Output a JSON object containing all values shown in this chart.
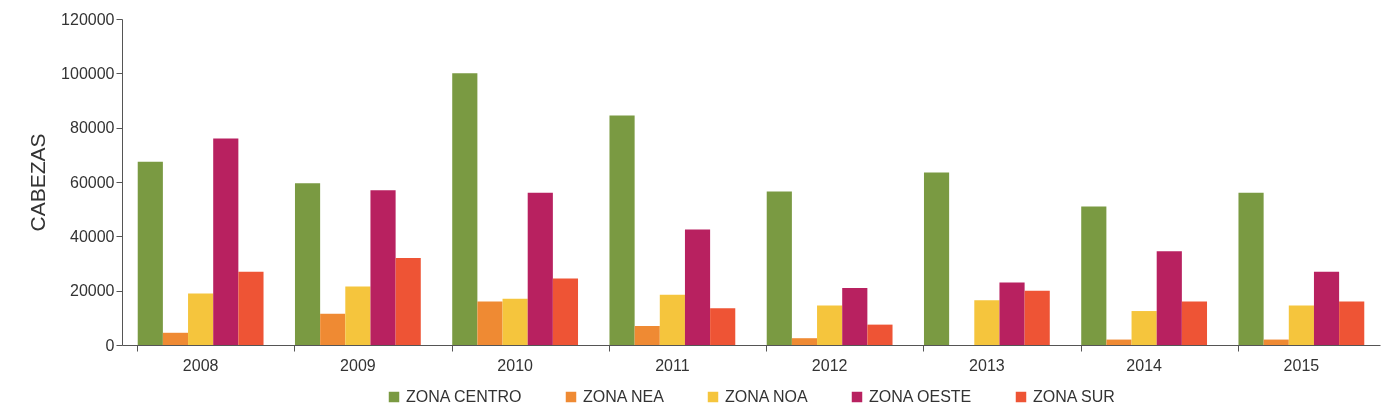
{
  "chart_data": {
    "type": "bar",
    "ylabel": "CABEZAS",
    "categories": [
      "2008",
      "2009",
      "2010",
      "2011",
      "2012",
      "2013",
      "2014",
      "2015"
    ],
    "series": [
      {
        "name": "ZONA CENTRO",
        "color": "#7a9a42",
        "values": [
          67500,
          59500,
          100000,
          84500,
          56500,
          63500,
          51000,
          56000
        ]
      },
      {
        "name": "ZONA NEA",
        "color": "#ef8a33",
        "values": [
          4500,
          11500,
          16000,
          7000,
          2500,
          null,
          2000,
          2000
        ]
      },
      {
        "name": "ZONA NOA",
        "color": "#f5c53d",
        "values": [
          19000,
          21500,
          17000,
          18500,
          14500,
          16500,
          12500,
          14500
        ]
      },
      {
        "name": "ZONA OESTE",
        "color": "#b82160",
        "values": [
          76000,
          57000,
          56000,
          42500,
          21000,
          23000,
          34500,
          27000
        ]
      },
      {
        "name": "ZONA SUR",
        "color": "#ee5435",
        "values": [
          27000,
          32000,
          24500,
          13500,
          7500,
          20000,
          16000,
          16000
        ]
      }
    ],
    "ylim": [
      0,
      120000
    ],
    "yticks": [
      0,
      20000,
      40000,
      60000,
      80000,
      100000,
      120000
    ],
    "grid": false,
    "legend": "bottom"
  }
}
